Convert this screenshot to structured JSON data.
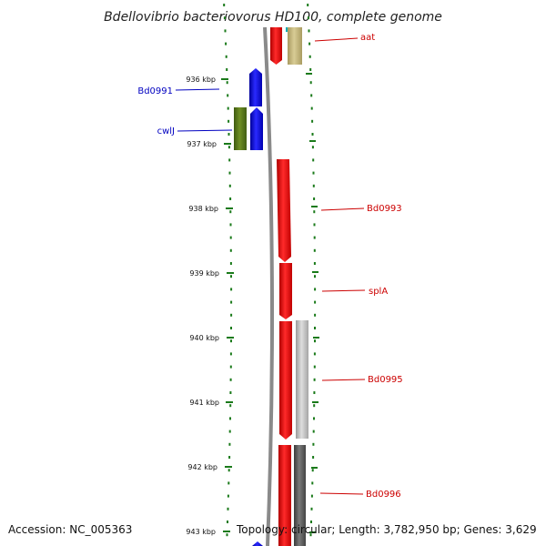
{
  "title": "Bdellovibrio bacteriovorus HD100, complete genome",
  "footer": {
    "accession": "Accession: NC_005363",
    "topology": "Topology: circular; Length: 3,782,950 bp; Genes: 3,629"
  },
  "colors": {
    "tick": "#1a7a1a",
    "backbone": "#8a8a8a",
    "left_label": "#0000c0",
    "right_label": "#cc0000"
  },
  "kbp_labels": [
    "936 kbp",
    "937 kbp",
    "938 kbp",
    "939 kbp",
    "940 kbp",
    "941 kbp",
    "942 kbp",
    "943 kbp"
  ],
  "gene_labels_left": [
    "Bd0991",
    "cwlJ"
  ],
  "gene_labels_right": [
    "aat",
    "Bd0993",
    "splA",
    "Bd0995",
    "Bd0996"
  ]
}
